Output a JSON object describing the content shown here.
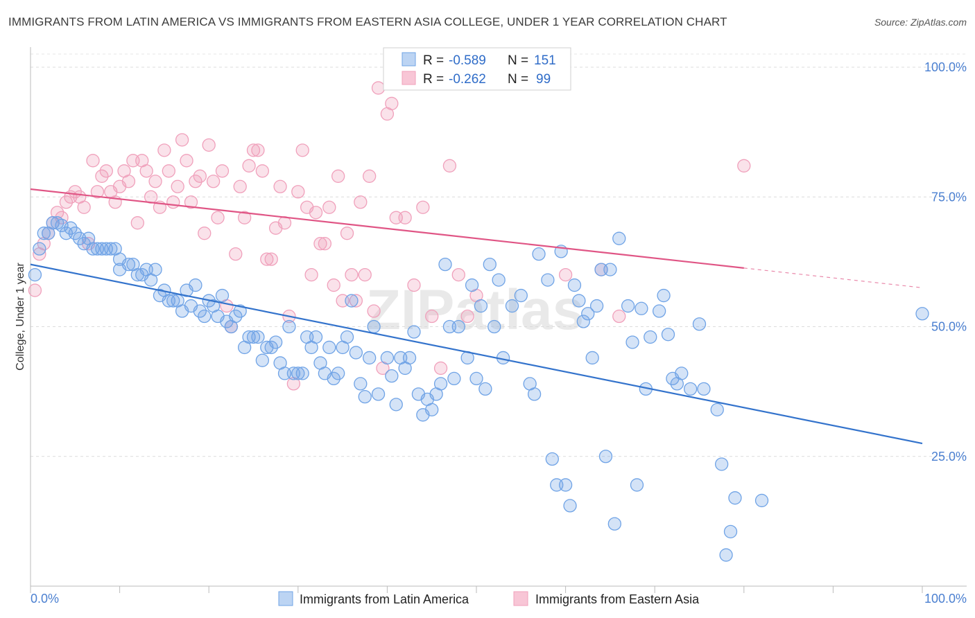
{
  "chart_data": {
    "type": "scatter",
    "title": "IMMIGRANTS FROM LATIN AMERICA VS IMMIGRANTS FROM EASTERN ASIA COLLEGE, UNDER 1 YEAR CORRELATION CHART",
    "source": "Source: ZipAtlas.com",
    "xlabel": "",
    "ylabel": "College, Under 1 year",
    "xlim": [
      0,
      100
    ],
    "ylim": [
      0,
      103
    ],
    "x_tick_labels": [
      "0.0%",
      "100.0%"
    ],
    "y_ticks": [
      {
        "value": 25,
        "label": "25.0%"
      },
      {
        "value": 50,
        "label": "50.0%"
      },
      {
        "value": 75,
        "label": "75.0%"
      },
      {
        "value": 100,
        "label": "100.0%"
      }
    ],
    "watermark": "ZIPatlas",
    "stats": [
      {
        "r_label": "R =",
        "r": "-0.589",
        "n_label": "N =",
        "n": "151"
      },
      {
        "r_label": "R =",
        "r": "-0.262",
        "n_label": "N =",
        "n": "99"
      }
    ],
    "series": [
      {
        "name": "Immigrants from Latin America",
        "color": "#6fa3e6",
        "line_color": "#3373cc",
        "trend": {
          "x0": 0,
          "y0": 62,
          "x1": 100,
          "y1": 27.5,
          "solid_until": 100
        },
        "points": [
          [
            0.5,
            60
          ],
          [
            1,
            65
          ],
          [
            1.5,
            68
          ],
          [
            2,
            68
          ],
          [
            2.5,
            70
          ],
          [
            3,
            70
          ],
          [
            3.5,
            69.5
          ],
          [
            4,
            68
          ],
          [
            4.5,
            69
          ],
          [
            5,
            68
          ],
          [
            5.5,
            67
          ],
          [
            6,
            66
          ],
          [
            6.5,
            67
          ],
          [
            7,
            65
          ],
          [
            7.5,
            65
          ],
          [
            8,
            65
          ],
          [
            8.5,
            65
          ],
          [
            9,
            65
          ],
          [
            9.5,
            65
          ],
          [
            10,
            63
          ],
          [
            10,
            61
          ],
          [
            11,
            62
          ],
          [
            11.5,
            62
          ],
          [
            12,
            60
          ],
          [
            12.5,
            60
          ],
          [
            13,
            61
          ],
          [
            13.5,
            59
          ],
          [
            14,
            61
          ],
          [
            14.5,
            56
          ],
          [
            15,
            57
          ],
          [
            15.5,
            55
          ],
          [
            16,
            55
          ],
          [
            16.5,
            55
          ],
          [
            17,
            53
          ],
          [
            17.5,
            57
          ],
          [
            18,
            54
          ],
          [
            18.5,
            58
          ],
          [
            19,
            53
          ],
          [
            19.5,
            52
          ],
          [
            20,
            55
          ],
          [
            20.5,
            54
          ],
          [
            21,
            52
          ],
          [
            21.5,
            56
          ],
          [
            22,
            51
          ],
          [
            22.5,
            50
          ],
          [
            23,
            52
          ],
          [
            23.5,
            53
          ],
          [
            24,
            46
          ],
          [
            24.5,
            48
          ],
          [
            25,
            48
          ],
          [
            25.5,
            48
          ],
          [
            26,
            43.5
          ],
          [
            26.5,
            46
          ],
          [
            27,
            46
          ],
          [
            27.5,
            47
          ],
          [
            28,
            43
          ],
          [
            28.5,
            41
          ],
          [
            29,
            50
          ],
          [
            29.5,
            41
          ],
          [
            30,
            41
          ],
          [
            30.5,
            41
          ],
          [
            31,
            48
          ],
          [
            31.5,
            46
          ],
          [
            32,
            48
          ],
          [
            32.5,
            43
          ],
          [
            33,
            41
          ],
          [
            33.5,
            46
          ],
          [
            34,
            40
          ],
          [
            34.5,
            41
          ],
          [
            35,
            46
          ],
          [
            35.5,
            48
          ],
          [
            36,
            55
          ],
          [
            36.5,
            45
          ],
          [
            37,
            39
          ],
          [
            37.5,
            36.5
          ],
          [
            38,
            44
          ],
          [
            38.5,
            50
          ],
          [
            39,
            37
          ],
          [
            40,
            44
          ],
          [
            40.5,
            40.5
          ],
          [
            41,
            35
          ],
          [
            41.5,
            44
          ],
          [
            42,
            42
          ],
          [
            42.5,
            44
          ],
          [
            43,
            49
          ],
          [
            43.5,
            37
          ],
          [
            44,
            33
          ],
          [
            44.5,
            36
          ],
          [
            45,
            34
          ],
          [
            45.5,
            37
          ],
          [
            46,
            39
          ],
          [
            46.5,
            62
          ],
          [
            47,
            50
          ],
          [
            47.5,
            40
          ],
          [
            48,
            50
          ],
          [
            49,
            44
          ],
          [
            49.5,
            58
          ],
          [
            50,
            40
          ],
          [
            50.5,
            54
          ],
          [
            51,
            38
          ],
          [
            51.5,
            62
          ],
          [
            52,
            50
          ],
          [
            52.5,
            59
          ],
          [
            53,
            44
          ],
          [
            54,
            54
          ],
          [
            55,
            56
          ],
          [
            56,
            39
          ],
          [
            56.5,
            37
          ],
          [
            57,
            64
          ],
          [
            58,
            59
          ],
          [
            58.5,
            24.5
          ],
          [
            59,
            19.5
          ],
          [
            59.5,
            64.5
          ],
          [
            60,
            19.5
          ],
          [
            60.5,
            15.5
          ],
          [
            61,
            58
          ],
          [
            61.5,
            55
          ],
          [
            62,
            51
          ],
          [
            62.5,
            52.5
          ],
          [
            63,
            44
          ],
          [
            63.5,
            54
          ],
          [
            64,
            61
          ],
          [
            64.5,
            25
          ],
          [
            65,
            61
          ],
          [
            65.5,
            12
          ],
          [
            66,
            67
          ],
          [
            67,
            54
          ],
          [
            67.5,
            47
          ],
          [
            68,
            19.5
          ],
          [
            68.5,
            53.5
          ],
          [
            69,
            38
          ],
          [
            69.5,
            48
          ],
          [
            70.5,
            53
          ],
          [
            71,
            56
          ],
          [
            71.5,
            48.5
          ],
          [
            72,
            40
          ],
          [
            72.5,
            39
          ],
          [
            73,
            41
          ],
          [
            74,
            38
          ],
          [
            75,
            50.5
          ],
          [
            75.5,
            38
          ],
          [
            77,
            34
          ],
          [
            77.5,
            23.5
          ],
          [
            78,
            6
          ],
          [
            78.5,
            10.5
          ],
          [
            79,
            17
          ],
          [
            82,
            16.5
          ],
          [
            100,
            52.5
          ]
        ]
      },
      {
        "name": "Immigrants from Eastern Asia",
        "color": "#f0a0bb",
        "line_color": "#e05585",
        "trend": {
          "x0": 0,
          "y0": 76.5,
          "x1": 100,
          "y1": 57.5,
          "solid_until": 80
        },
        "points": [
          [
            0.5,
            57
          ],
          [
            1,
            64
          ],
          [
            1.5,
            66
          ],
          [
            2,
            68
          ],
          [
            2.5,
            70
          ],
          [
            3,
            72
          ],
          [
            3.5,
            71
          ],
          [
            4,
            74
          ],
          [
            4.5,
            75
          ],
          [
            5,
            76
          ],
          [
            5.5,
            75
          ],
          [
            6,
            73
          ],
          [
            6.5,
            66
          ],
          [
            7,
            82
          ],
          [
            7.5,
            76
          ],
          [
            8,
            79
          ],
          [
            8.5,
            80
          ],
          [
            9,
            76
          ],
          [
            9.5,
            74
          ],
          [
            10,
            77
          ],
          [
            10.5,
            80
          ],
          [
            11,
            78
          ],
          [
            11.5,
            82
          ],
          [
            12,
            70
          ],
          [
            12.5,
            82
          ],
          [
            13,
            80
          ],
          [
            13.5,
            75
          ],
          [
            14,
            78
          ],
          [
            14.5,
            73
          ],
          [
            15,
            84
          ],
          [
            15.5,
            80
          ],
          [
            16,
            74
          ],
          [
            16.5,
            77
          ],
          [
            17,
            86
          ],
          [
            17.5,
            82
          ],
          [
            18,
            74
          ],
          [
            18.5,
            78
          ],
          [
            19,
            79
          ],
          [
            19.5,
            68
          ],
          [
            20,
            85
          ],
          [
            20.5,
            78
          ],
          [
            21,
            71
          ],
          [
            21.5,
            80
          ],
          [
            22,
            54
          ],
          [
            22.5,
            50
          ],
          [
            23,
            64
          ],
          [
            23.5,
            77
          ],
          [
            24,
            71
          ],
          [
            24.5,
            81
          ],
          [
            25,
            84
          ],
          [
            25.5,
            84
          ],
          [
            26,
            80
          ],
          [
            26.5,
            63
          ],
          [
            27,
            63
          ],
          [
            27.5,
            69
          ],
          [
            28,
            77
          ],
          [
            28.5,
            70
          ],
          [
            29,
            52
          ],
          [
            29.5,
            39
          ],
          [
            30,
            76
          ],
          [
            30.5,
            84
          ],
          [
            31,
            73
          ],
          [
            31.5,
            60
          ],
          [
            32,
            72
          ],
          [
            32.5,
            66
          ],
          [
            33,
            66
          ],
          [
            33.5,
            73
          ],
          [
            34,
            58
          ],
          [
            34.5,
            79
          ],
          [
            35,
            55
          ],
          [
            35.5,
            68
          ],
          [
            36,
            60
          ],
          [
            36.5,
            55
          ],
          [
            37,
            74
          ],
          [
            37.5,
            60
          ],
          [
            38,
            79
          ],
          [
            38.5,
            53
          ],
          [
            39,
            96
          ],
          [
            39.5,
            42
          ],
          [
            40,
            91
          ],
          [
            40.5,
            93
          ],
          [
            41,
            71
          ],
          [
            42,
            71
          ],
          [
            43,
            58
          ],
          [
            44,
            73
          ],
          [
            45,
            52
          ],
          [
            46,
            42
          ],
          [
            47,
            81
          ],
          [
            48,
            60
          ],
          [
            49,
            52
          ],
          [
            50,
            56
          ],
          [
            60,
            60
          ],
          [
            64,
            61
          ],
          [
            66,
            52
          ],
          [
            80,
            81
          ]
        ]
      }
    ]
  }
}
